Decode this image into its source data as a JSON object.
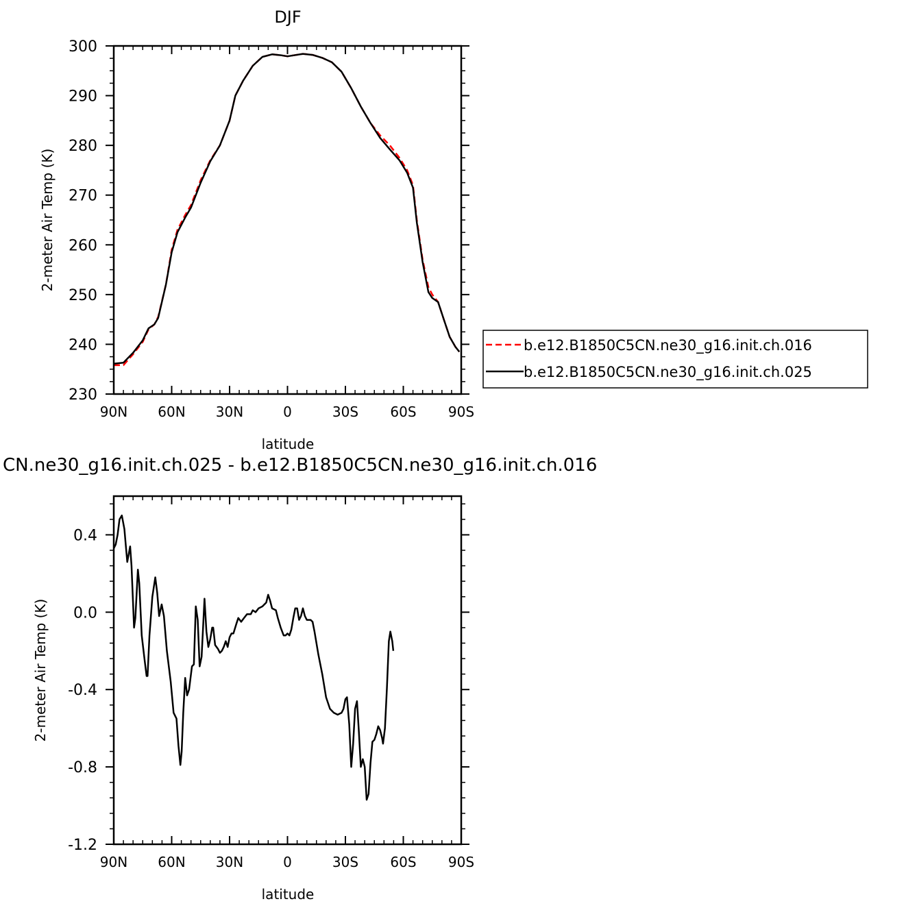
{
  "chart_data": [
    {
      "type": "line",
      "title": "DJF",
      "xlabel": "latitude",
      "ylabel": "2-meter Air Temp (K)",
      "xlim": [
        90,
        -90
      ],
      "ylim": [
        230,
        300
      ],
      "x_ticks": [
        {
          "value": 90,
          "label": "90N"
        },
        {
          "value": 60,
          "label": "60N"
        },
        {
          "value": 30,
          "label": "30N"
        },
        {
          "value": 0,
          "label": "0"
        },
        {
          "value": -30,
          "label": "30S"
        },
        {
          "value": -60,
          "label": "60S"
        },
        {
          "value": -90,
          "label": "90S"
        }
      ],
      "y_ticks": [
        {
          "value": 300,
          "label": "300"
        },
        {
          "value": 290,
          "label": "290"
        },
        {
          "value": 280,
          "label": "280"
        },
        {
          "value": 270,
          "label": "270"
        },
        {
          "value": 260,
          "label": "260"
        },
        {
          "value": 250,
          "label": "250"
        },
        {
          "value": 240,
          "label": "240"
        },
        {
          "value": 230,
          "label": "230"
        }
      ],
      "legend": "right",
      "series": [
        {
          "name": "b.e12.B1850C5CN.ne30_g16.init.ch.016",
          "color": "#ff0000",
          "dash": "dashed",
          "points": [
            [
              90,
              235.8
            ],
            [
              85,
              235.8
            ],
            [
              80,
              238
            ],
            [
              75,
              240.5
            ],
            [
              72,
              243
            ],
            [
              69,
              244
            ],
            [
              67,
              245.5
            ],
            [
              63,
              252
            ],
            [
              60,
              259
            ],
            [
              57,
              263
            ],
            [
              53,
              266
            ],
            [
              50,
              268
            ],
            [
              45,
              273
            ],
            [
              40,
              277
            ],
            [
              35,
              280
            ],
            [
              30,
              285
            ],
            [
              27,
              290
            ],
            [
              23,
              293
            ],
            [
              18,
              296
            ],
            [
              13,
              297.8
            ],
            [
              8,
              298.3
            ],
            [
              3,
              298.1
            ],
            [
              0,
              297.9
            ],
            [
              -3,
              298.1
            ],
            [
              -8,
              298.4
            ],
            [
              -13,
              298.2
            ],
            [
              -18,
              297.6
            ],
            [
              -23,
              296.7
            ],
            [
              -28,
              294.8
            ],
            [
              -33,
              291.5
            ],
            [
              -38,
              287.8
            ],
            [
              -43,
              284.5
            ],
            [
              -48,
              282
            ],
            [
              -53,
              280
            ],
            [
              -58,
              277.5
            ],
            [
              -62,
              275
            ],
            [
              -65,
              272
            ],
            [
              -67,
              265
            ],
            [
              -70,
              257
            ],
            [
              -73,
              251.5
            ],
            [
              -75,
              250
            ],
            [
              -78,
              248.5
            ],
            [
              -81,
              245
            ],
            [
              -84,
              241.5
            ],
            [
              -87,
              239.5
            ],
            [
              -89,
              238.5
            ]
          ]
        },
        {
          "name": "b.e12.B1850C5CN.ne30_g16.init.ch.025",
          "color": "#000000",
          "dash": "solid",
          "points": [
            [
              90,
              236.1
            ],
            [
              85,
              236.3
            ],
            [
              80,
              238.3
            ],
            [
              75,
              240.8
            ],
            [
              72,
              243.2
            ],
            [
              69,
              244
            ],
            [
              67,
              245.3
            ],
            [
              63,
              252
            ],
            [
              60,
              258.5
            ],
            [
              57,
              262.5
            ],
            [
              53,
              265.5
            ],
            [
              50,
              267.5
            ],
            [
              45,
              272.5
            ],
            [
              40,
              276.8
            ],
            [
              35,
              280
            ],
            [
              30,
              285
            ],
            [
              27,
              290
            ],
            [
              23,
              293
            ],
            [
              18,
              296
            ],
            [
              13,
              297.8
            ],
            [
              8,
              298.3
            ],
            [
              3,
              298.1
            ],
            [
              0,
              297.9
            ],
            [
              -3,
              298.1
            ],
            [
              -8,
              298.4
            ],
            [
              -13,
              298.2
            ],
            [
              -18,
              297.6
            ],
            [
              -23,
              296.7
            ],
            [
              -28,
              294.8
            ],
            [
              -33,
              291.5
            ],
            [
              -38,
              287.8
            ],
            [
              -43,
              284.5
            ],
            [
              -48,
              281.5
            ],
            [
              -53,
              279.2
            ],
            [
              -58,
              277
            ],
            [
              -62,
              274.5
            ],
            [
              -65,
              271.5
            ],
            [
              -67,
              264.5
            ],
            [
              -70,
              256.5
            ],
            [
              -73,
              250.5
            ],
            [
              -75,
              249.3
            ],
            [
              -78,
              248.5
            ],
            [
              -81,
              245
            ],
            [
              -84,
              241.5
            ],
            [
              -87,
              239.5
            ],
            [
              -89,
              238.5
            ]
          ]
        }
      ]
    },
    {
      "type": "line",
      "title": "CN.ne30_g16.init.ch.025 - b.e12.B1850C5CN.ne30_g16.init.ch.016",
      "xlabel": "latitude",
      "ylabel": "2-meter Air Temp (K)",
      "xlim": [
        90,
        -90
      ],
      "ylim": [
        -1.2,
        0.6
      ],
      "x_ticks": [
        {
          "value": 90,
          "label": "90N"
        },
        {
          "value": 60,
          "label": "60N"
        },
        {
          "value": 30,
          "label": "30N"
        },
        {
          "value": 0,
          "label": "0"
        },
        {
          "value": -30,
          "label": "30S"
        },
        {
          "value": -60,
          "label": "60S"
        },
        {
          "value": -90,
          "label": "90S"
        }
      ],
      "y_ticks": [
        {
          "value": 0.4,
          "label": "0.4"
        },
        {
          "value": 0.0,
          "label": "0.0"
        },
        {
          "value": -0.4,
          "label": "-0.4"
        },
        {
          "value": -0.8,
          "label": "-0.8"
        },
        {
          "value": -1.2,
          "label": "-1.2"
        }
      ],
      "series": [
        {
          "color": "#000000",
          "dash": "solid",
          "points": [
            [
              90,
              0.33
            ],
            [
              89,
              0.35
            ],
            [
              88,
              0.4
            ],
            [
              87,
              0.48
            ],
            [
              85.8,
              0.5
            ],
            [
              84.5,
              0.43
            ],
            [
              83.7,
              0.34
            ],
            [
              83,
              0.26
            ],
            [
              81.5,
              0.34
            ],
            [
              80.8,
              0.24
            ],
            [
              79.5,
              -0.08
            ],
            [
              78.8,
              -0.03
            ],
            [
              77.5,
              0.22
            ],
            [
              76.8,
              0.15
            ],
            [
              75.5,
              -0.12
            ],
            [
              74,
              -0.25
            ],
            [
              73,
              -0.33
            ],
            [
              72.5,
              -0.33
            ],
            [
              71.5,
              -0.12
            ],
            [
              70,
              0.08
            ],
            [
              68.5,
              0.18
            ],
            [
              67.5,
              0.1
            ],
            [
              66.5,
              -0.02
            ],
            [
              65.2,
              0.04
            ],
            [
              64,
              -0.02
            ],
            [
              62.5,
              -0.2
            ],
            [
              60.5,
              -0.36
            ],
            [
              59,
              -0.52
            ],
            [
              57.5,
              -0.55
            ],
            [
              56.5,
              -0.69
            ],
            [
              55.5,
              -0.79
            ],
            [
              54.8,
              -0.72
            ],
            [
              54,
              -0.52
            ],
            [
              53,
              -0.34
            ],
            [
              52,
              -0.43
            ],
            [
              51,
              -0.4
            ],
            [
              49.5,
              -0.28
            ],
            [
              48.5,
              -0.27
            ],
            [
              47.5,
              0.03
            ],
            [
              46.5,
              -0.04
            ],
            [
              45.5,
              -0.28
            ],
            [
              44.5,
              -0.23
            ],
            [
              43,
              0.07
            ],
            [
              42,
              -0.1
            ],
            [
              41,
              -0.18
            ],
            [
              40,
              -0.14
            ],
            [
              39,
              -0.08
            ],
            [
              38.5,
              -0.08
            ],
            [
              37.5,
              -0.17
            ],
            [
              36,
              -0.19
            ],
            [
              35,
              -0.21
            ],
            [
              34,
              -0.2
            ],
            [
              33,
              -0.18
            ],
            [
              32,
              -0.15
            ],
            [
              31,
              -0.18
            ],
            [
              30,
              -0.13
            ],
            [
              29,
              -0.11
            ],
            [
              28,
              -0.11
            ],
            [
              26.5,
              -0.06
            ],
            [
              25.5,
              -0.03
            ],
            [
              24,
              -0.05
            ],
            [
              22.5,
              -0.03
            ],
            [
              21,
              -0.01
            ],
            [
              19,
              -0.01
            ],
            [
              18,
              0.01
            ],
            [
              16.5,
              0
            ],
            [
              15,
              0.02
            ],
            [
              13,
              0.03
            ],
            [
              11,
              0.05
            ],
            [
              10,
              0.09
            ],
            [
              9,
              0.06
            ],
            [
              8,
              0.02
            ],
            [
              6,
              0.01
            ],
            [
              5,
              -0.03
            ],
            [
              3.5,
              -0.08
            ],
            [
              2,
              -0.12
            ],
            [
              1,
              -0.12
            ],
            [
              0,
              -0.11
            ],
            [
              -1,
              -0.12
            ],
            [
              -2,
              -0.09
            ],
            [
              -3,
              -0.03
            ],
            [
              -4,
              0.02
            ],
            [
              -5,
              0.02
            ],
            [
              -6,
              -0.04
            ],
            [
              -7,
              -0.02
            ],
            [
              -8,
              0.02
            ],
            [
              -9,
              -0.02
            ],
            [
              -10,
              -0.04
            ],
            [
              -12,
              -0.04
            ],
            [
              -13,
              -0.05
            ],
            [
              -14,
              -0.1
            ],
            [
              -16,
              -0.22
            ],
            [
              -18,
              -0.32
            ],
            [
              -20,
              -0.44
            ],
            [
              -22,
              -0.5
            ],
            [
              -24,
              -0.52
            ],
            [
              -26,
              -0.53
            ],
            [
              -28,
              -0.52
            ],
            [
              -29,
              -0.5
            ],
            [
              -30,
              -0.45
            ],
            [
              -30.8,
              -0.44
            ],
            [
              -32,
              -0.58
            ],
            [
              -33,
              -0.8
            ],
            [
              -34,
              -0.68
            ],
            [
              -35,
              -0.5
            ],
            [
              -36,
              -0.46
            ],
            [
              -37,
              -0.62
            ],
            [
              -38,
              -0.8
            ],
            [
              -39,
              -0.76
            ],
            [
              -40,
              -0.8
            ],
            [
              -41,
              -0.97
            ],
            [
              -42,
              -0.94
            ],
            [
              -43,
              -0.78
            ],
            [
              -44,
              -0.67
            ],
            [
              -45,
              -0.66
            ],
            [
              -46,
              -0.63
            ],
            [
              -47,
              -0.59
            ],
            [
              -48,
              -0.61
            ],
            [
              -49,
              -0.65
            ],
            [
              -49.5,
              -0.68
            ],
            [
              -50.5,
              -0.6
            ],
            [
              -51.5,
              -0.39
            ],
            [
              -52.5,
              -0.15
            ],
            [
              -53.3,
              -0.1
            ],
            [
              -54.3,
              -0.15
            ],
            [
              -54.8,
              -0.2
            ]
          ]
        }
      ]
    }
  ]
}
